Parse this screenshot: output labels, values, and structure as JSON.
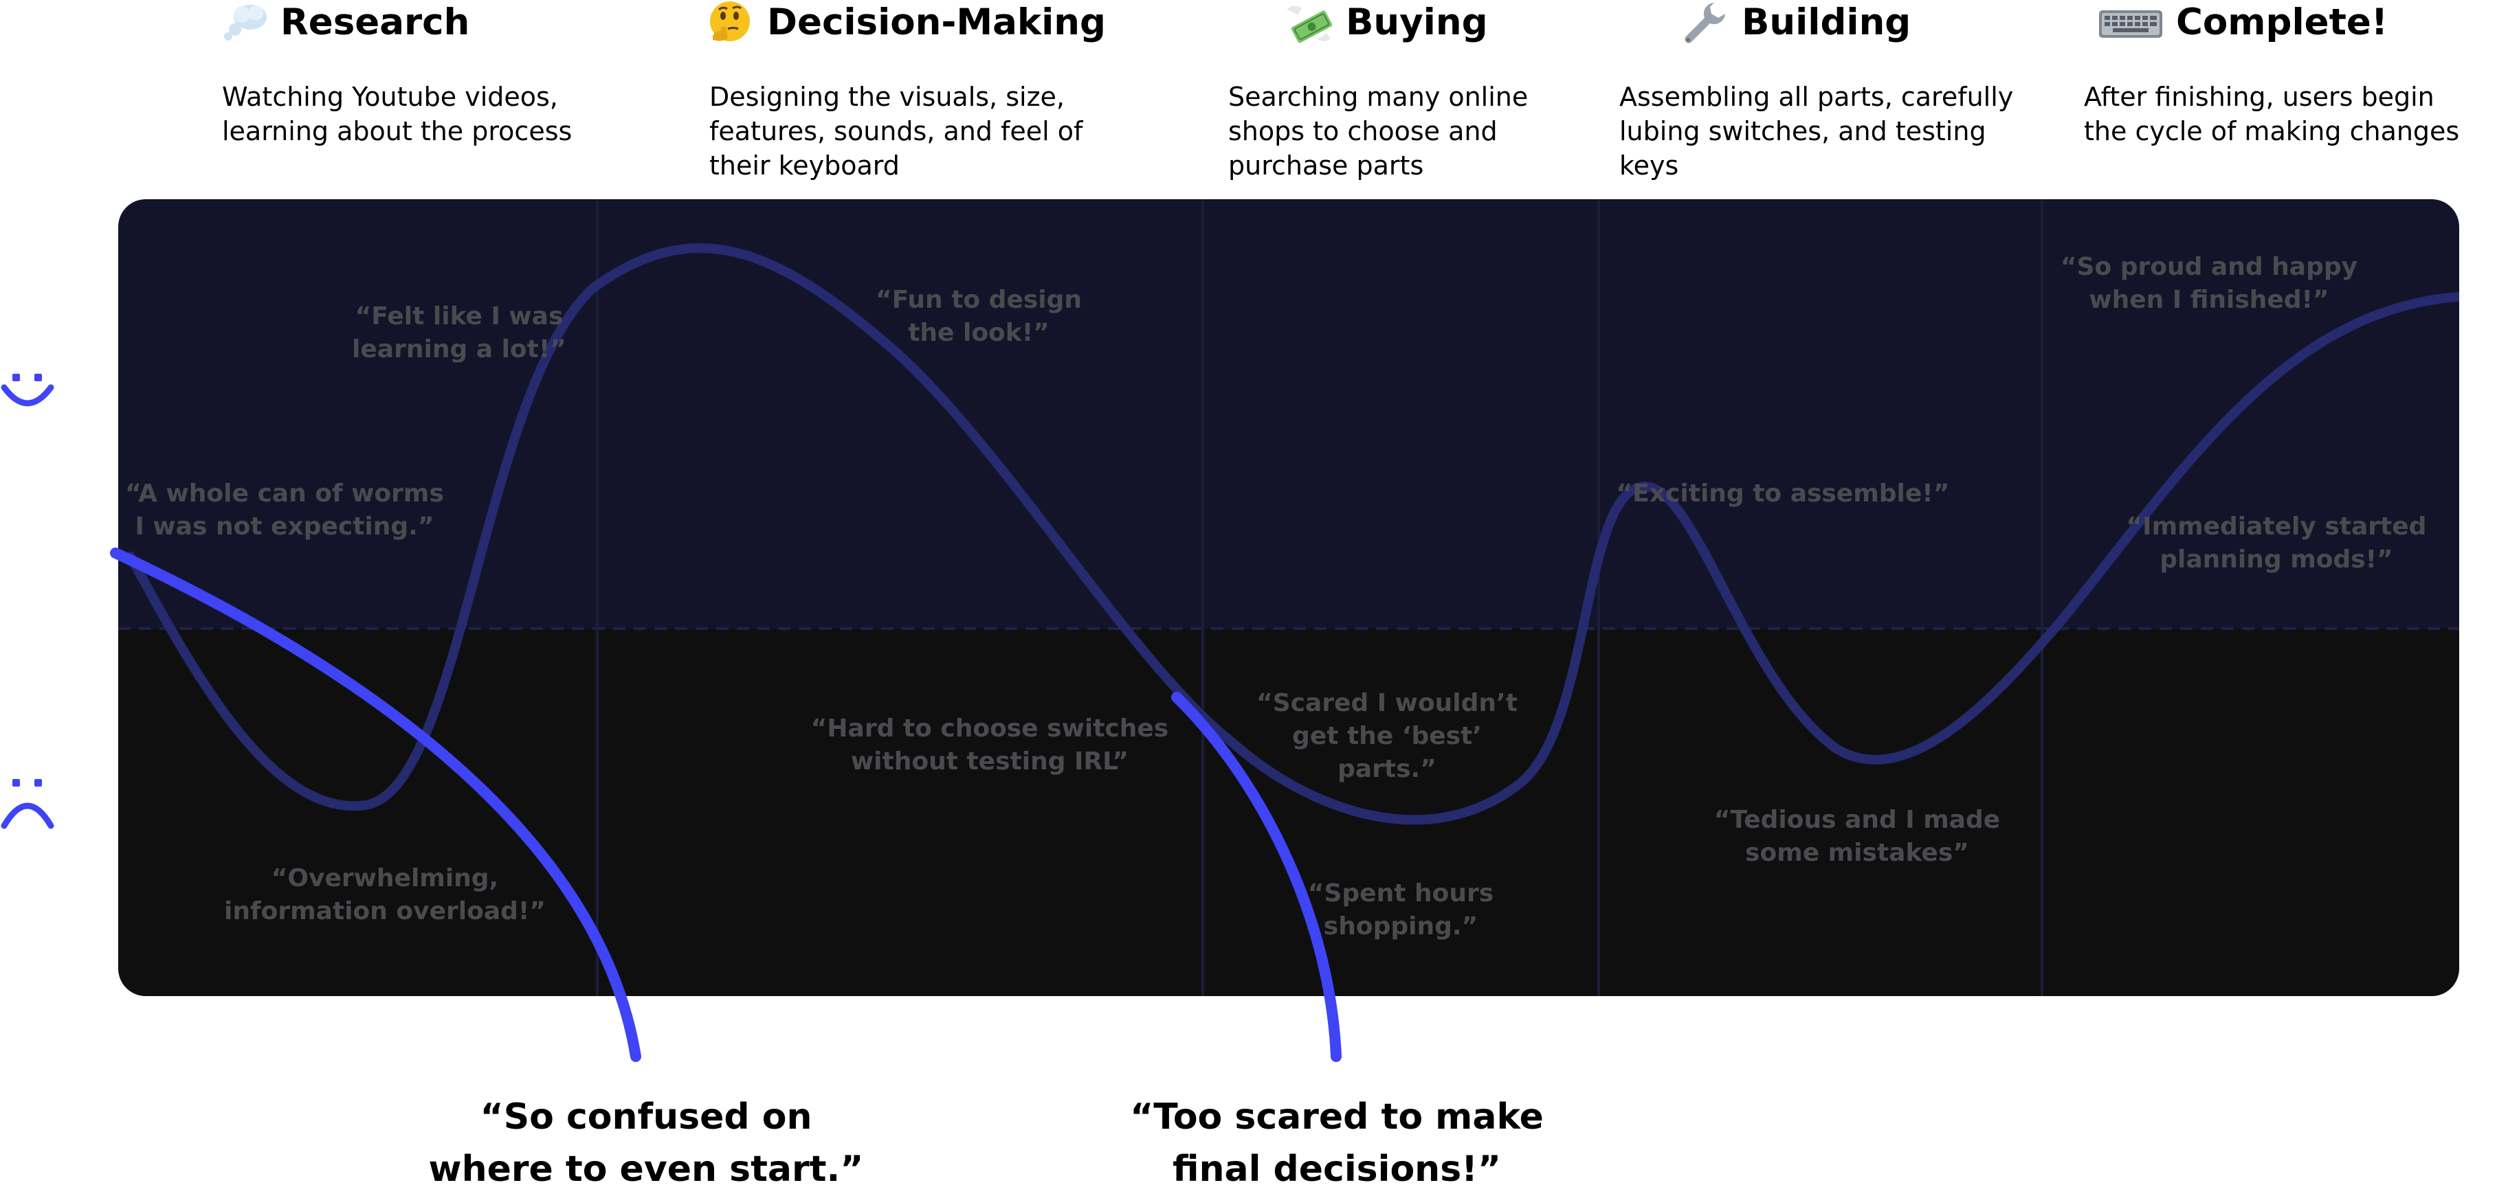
{
  "stages": [
    {
      "id": "research",
      "icon": "thought-bubble-icon",
      "title": "Research",
      "description": "Watching Youtube videos, learning about the process"
    },
    {
      "id": "decision-making",
      "icon": "thinking-face-icon",
      "title": "Decision-Making",
      "description": "Designing the visuals, size, features, sounds, and feel of their keyboard"
    },
    {
      "id": "buying",
      "icon": "money-with-wings-icon",
      "title": "Buying",
      "description": "Searching many online shops to choose and purchase parts"
    },
    {
      "id": "building",
      "icon": "wrench-icon",
      "title": "Building",
      "description": "Assembling all parts, carefully lubing switches, and testing keys"
    },
    {
      "id": "complete",
      "icon": "keyboard-icon",
      "title": "Complete!",
      "description": "After finishing, users begin the cycle of making changes"
    }
  ],
  "emotion_axis": {
    "positive_icon": "smiley-face-icon",
    "negative_icon": "frowning-face-icon"
  },
  "quotes": [
    {
      "lines": [
        "“Felt like I was",
        "learning a lot!”"
      ]
    },
    {
      "lines": [
        "“A whole can of worms",
        "I was not expecting.”"
      ]
    },
    {
      "lines": [
        "“Overwhelming,",
        "information overload!”"
      ]
    },
    {
      "lines": [
        "“Fun to design",
        "the look!”"
      ]
    },
    {
      "lines": [
        "“Hard to choose switches",
        "without testing IRL”"
      ]
    },
    {
      "lines": [
        "“Scared I wouldn’t",
        "get the ‘best’",
        "parts.”"
      ]
    },
    {
      "lines": [
        "“Spent hours",
        "shopping.”"
      ]
    },
    {
      "lines": [
        "“Exciting to assemble!”"
      ]
    },
    {
      "lines": [
        "“Tedious and I made",
        "some mistakes”"
      ]
    },
    {
      "lines": [
        "“So proud and happy",
        "when I finished!”"
      ]
    },
    {
      "lines": [
        "“Immediately started",
        "planning mods!”"
      ]
    }
  ],
  "pain_points": [
    {
      "lines": [
        "“So confused on",
        "where to even start.”"
      ]
    },
    {
      "lines": [
        "“Too scared to make",
        "final decisions!”"
      ]
    }
  ],
  "colors": {
    "accent": "#3f44f5",
    "journey_line": "#262a6e",
    "quote_text": "#4a4a4f",
    "board_positive": "#13142a",
    "board_negative": "#0f0f10",
    "divider": "#1f2147"
  }
}
